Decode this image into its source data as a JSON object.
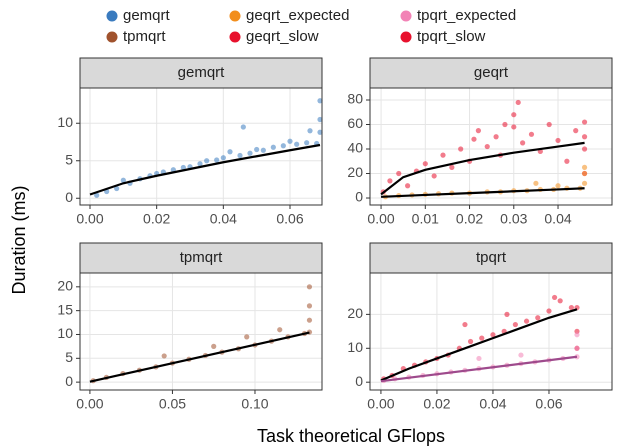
{
  "axis_titles": {
    "x": "Task theoretical GFlops",
    "y": "Duration (ms)"
  },
  "chart_data": [
    {
      "type": "scatter",
      "title": "gemqrt",
      "xlim": [
        -0.003,
        0.0696
      ],
      "ylim": [
        -0.9,
        14.7
      ],
      "xticks": [
        {
          "value": 0,
          "label": "0.00"
        },
        0.02,
        0.04,
        0.06
      ],
      "yticks": [
        0,
        5,
        10
      ],
      "grid": true,
      "series": [
        {
          "name": "gemqrt",
          "color": "#3a7bbf",
          "x": [
            0.002,
            0.005,
            0.008,
            0.01,
            0.012,
            0.015,
            0.018,
            0.02,
            0.022,
            0.025,
            0.028,
            0.03,
            0.033,
            0.035,
            0.038,
            0.04,
            0.042,
            0.045,
            0.048,
            0.05,
            0.052,
            0.055,
            0.058,
            0.06,
            0.062,
            0.065,
            0.068,
            0.069,
            0.069,
            0.069,
            0.046,
            0.066
          ],
          "values": [
            0.4,
            0.9,
            1.3,
            2.4,
            2.0,
            2.6,
            3.0,
            3.3,
            3.5,
            3.8,
            4.1,
            4.2,
            4.6,
            5.0,
            5.1,
            5.4,
            6.2,
            5.7,
            6.0,
            6.5,
            6.4,
            6.8,
            7.0,
            7.6,
            7.2,
            7.4,
            7.3,
            13.0,
            10.5,
            8.8,
            9.5,
            9.0
          ]
        }
      ],
      "fits": [
        {
          "color": "#000000",
          "x": [
            0,
            0.01,
            0.02,
            0.03,
            0.04,
            0.05,
            0.06,
            0.069
          ],
          "values": [
            0.5,
            2.0,
            3.0,
            3.9,
            4.8,
            5.6,
            6.4,
            7.1
          ]
        }
      ]
    },
    {
      "type": "scatter",
      "title": "geqrt",
      "xlim": [
        -0.0025,
        0.0522
      ],
      "ylim": [
        -5.7,
        89.8
      ],
      "xticks": [
        {
          "value": 0,
          "label": "0.00"
        },
        0.01,
        0.02,
        0.03,
        0.04
      ],
      "yticks": [
        0,
        20,
        40,
        60,
        80
      ],
      "grid": true,
      "series": [
        {
          "name": "geqrt_expected",
          "color": "#f28e1c",
          "x": [
            0.001,
            0.004,
            0.007,
            0.01,
            0.013,
            0.016,
            0.02,
            0.024,
            0.027,
            0.03,
            0.033,
            0.036,
            0.039,
            0.042,
            0.045,
            0.046,
            0.046,
            0.046,
            0.035,
            0.04
          ],
          "values": [
            1,
            2,
            2.5,
            3,
            3.5,
            4,
            4,
            5,
            5,
            6,
            6,
            7,
            7,
            8,
            8,
            12,
            20,
            25,
            12,
            10
          ]
        },
        {
          "name": "geqrt_slow",
          "color": "#e8112d",
          "x": [
            0.0005,
            0.002,
            0.004,
            0.006,
            0.008,
            0.01,
            0.012,
            0.014,
            0.016,
            0.018,
            0.02,
            0.022,
            0.024,
            0.026,
            0.028,
            0.03,
            0.031,
            0.032,
            0.034,
            0.036,
            0.038,
            0.04,
            0.042,
            0.044,
            0.046,
            0.046,
            0.046,
            0.046,
            0.021,
            0.027,
            0.03
          ],
          "values": [
            5,
            14,
            20,
            10,
            22,
            28,
            18,
            35,
            25,
            40,
            30,
            55,
            42,
            50,
            60,
            58,
            78,
            45,
            52,
            38,
            60,
            47,
            30,
            55,
            62,
            40,
            20,
            50,
            48,
            35,
            68
          ]
        }
      ],
      "fits": [
        {
          "color": "#000000",
          "x": [
            0,
            0.005,
            0.01,
            0.02,
            0.03,
            0.04,
            0.046
          ],
          "values": [
            3,
            17,
            23,
            31,
            37,
            42,
            45
          ]
        },
        {
          "color": "#000000",
          "x": [
            0,
            0.01,
            0.02,
            0.03,
            0.04,
            0.046
          ],
          "values": [
            1,
            2.5,
            4,
            5.5,
            7,
            8
          ]
        }
      ]
    },
    {
      "type": "scatter",
      "title": "tpmqrt",
      "xlim": [
        -0.006,
        0.1406
      ],
      "ylim": [
        -1.65,
        22.9
      ],
      "xticks": [
        {
          "value": 0,
          "label": "0.00"
        },
        0.05,
        {
          "value": 0.1,
          "label": "0.10"
        }
      ],
      "yticks": [
        0,
        5,
        10,
        15,
        20
      ],
      "grid": true,
      "series": [
        {
          "name": "tpmqrt",
          "color": "#a0522d",
          "x": [
            0.002,
            0.01,
            0.02,
            0.03,
            0.04,
            0.05,
            0.06,
            0.07,
            0.08,
            0.09,
            0.1,
            0.11,
            0.12,
            0.13,
            0.133,
            0.133,
            0.133,
            0.133,
            0.045,
            0.075,
            0.095,
            0.115
          ],
          "values": [
            0.3,
            1.0,
            1.8,
            2.5,
            3.2,
            4.0,
            4.8,
            5.6,
            6.3,
            7.0,
            7.8,
            8.6,
            9.5,
            10.2,
            10.5,
            13,
            16,
            20,
            5.5,
            7.5,
            9.5,
            11
          ]
        }
      ],
      "fits": [
        {
          "color": "#000000",
          "x": [
            0,
            0.133
          ],
          "values": [
            0.1,
            10.4
          ]
        }
      ]
    },
    {
      "type": "scatter",
      "title": "tpqrt",
      "xlim": [
        -0.0039,
        0.0825
      ],
      "ylim": [
        -2.3,
        32.2
      ],
      "xticks": [
        {
          "value": 0,
          "label": "0.00"
        },
        0.02,
        0.04,
        0.06
      ],
      "yticks": [
        0,
        10,
        20
      ],
      "grid": true,
      "series": [
        {
          "name": "tpqrt_expected",
          "color": "#f283b6",
          "x": [
            0.001,
            0.005,
            0.01,
            0.015,
            0.02,
            0.025,
            0.03,
            0.035,
            0.04,
            0.045,
            0.05,
            0.055,
            0.06,
            0.065,
            0.07,
            0.07,
            0.07,
            0.035,
            0.05
          ],
          "values": [
            0.5,
            1,
            1.5,
            2,
            2.5,
            3,
            3.5,
            4,
            4.5,
            5,
            5.5,
            6,
            6.5,
            7,
            7.5,
            10,
            14,
            7,
            8
          ]
        },
        {
          "name": "tpqrt_slow",
          "color": "#e8112d",
          "x": [
            0.001,
            0.004,
            0.008,
            0.012,
            0.016,
            0.02,
            0.024,
            0.028,
            0.032,
            0.036,
            0.04,
            0.044,
            0.048,
            0.052,
            0.056,
            0.06,
            0.064,
            0.068,
            0.07,
            0.07,
            0.07,
            0.03,
            0.045,
            0.062
          ],
          "values": [
            1,
            2,
            4,
            5,
            6,
            7,
            8,
            10,
            12,
            13,
            14,
            15,
            17,
            18,
            19,
            21,
            24,
            22,
            22,
            15,
            10,
            17,
            20,
            25
          ]
        }
      ],
      "fits": [
        {
          "color": "#000000",
          "x": [
            0,
            0.01,
            0.02,
            0.03,
            0.04,
            0.05,
            0.06,
            0.07
          ],
          "values": [
            0.5,
            4,
            7,
            10,
            13,
            16,
            19,
            21.5
          ]
        },
        {
          "color": "#9e4a8c",
          "x": [
            0,
            0.07
          ],
          "values": [
            0.3,
            7.5
          ]
        }
      ]
    }
  ]
}
